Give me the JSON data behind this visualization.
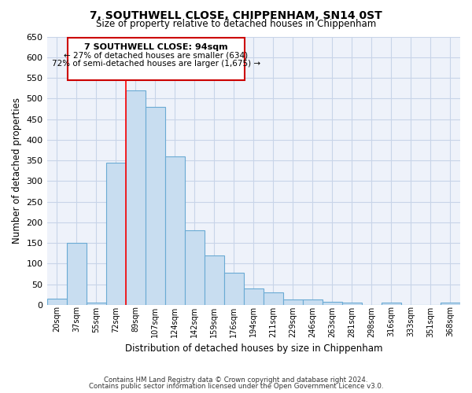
{
  "title": "7, SOUTHWELL CLOSE, CHIPPENHAM, SN14 0ST",
  "subtitle": "Size of property relative to detached houses in Chippenham",
  "xlabel": "Distribution of detached houses by size in Chippenham",
  "ylabel": "Number of detached properties",
  "categories": [
    "20sqm",
    "37sqm",
    "55sqm",
    "72sqm",
    "89sqm",
    "107sqm",
    "124sqm",
    "142sqm",
    "159sqm",
    "176sqm",
    "194sqm",
    "211sqm",
    "229sqm",
    "246sqm",
    "263sqm",
    "281sqm",
    "298sqm",
    "316sqm",
    "333sqm",
    "351sqm",
    "368sqm"
  ],
  "values": [
    15,
    150,
    5,
    345,
    520,
    480,
    360,
    180,
    120,
    78,
    40,
    30,
    13,
    13,
    8,
    5,
    0,
    5,
    0,
    0,
    5
  ],
  "bar_color": "#c8ddf0",
  "bar_edge_color": "#6aaad4",
  "annotation_title": "7 SOUTHWELL CLOSE: 94sqm",
  "annotation_line1": "← 27% of detached houses are smaller (634)",
  "annotation_line2": "72% of semi-detached houses are larger (1,675) →",
  "annotation_box_color": "#ffffff",
  "annotation_box_edge": "#cc0000",
  "ylim": [
    0,
    650
  ],
  "yticks": [
    0,
    50,
    100,
    150,
    200,
    250,
    300,
    350,
    400,
    450,
    500,
    550,
    600,
    650
  ],
  "footnote1": "Contains HM Land Registry data © Crown copyright and database right 2024.",
  "footnote2": "Contains public sector information licensed under the Open Government Licence v3.0.",
  "bg_color": "#ffffff",
  "grid_color": "#c8d4e8",
  "plot_bg_color": "#eef2fa"
}
